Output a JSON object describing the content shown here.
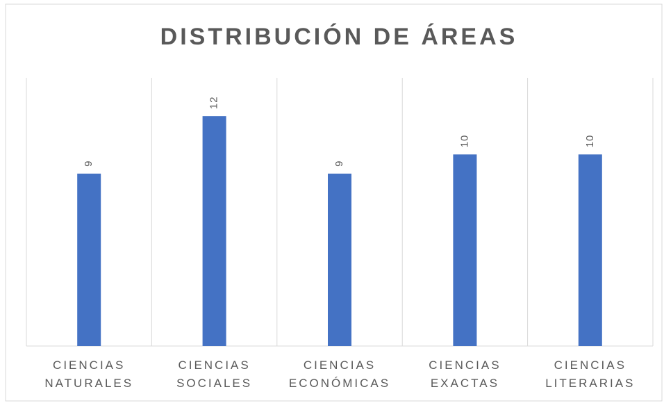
{
  "chart_data": {
    "type": "bar",
    "title": "DISTRIBUCIÓN DE ÁREAS",
    "categories": [
      "CIENCIAS NATURALES",
      "CIENCIAS SOCIALES",
      "CIENCIAS ECONÓMICAS",
      "CIENCIAS EXACTAS",
      "CIENCIAS LITERARIAS"
    ],
    "values": [
      9,
      12,
      9,
      10,
      10
    ],
    "color": "#4472c4",
    "ylim": [
      0,
      14
    ],
    "grid": true
  }
}
